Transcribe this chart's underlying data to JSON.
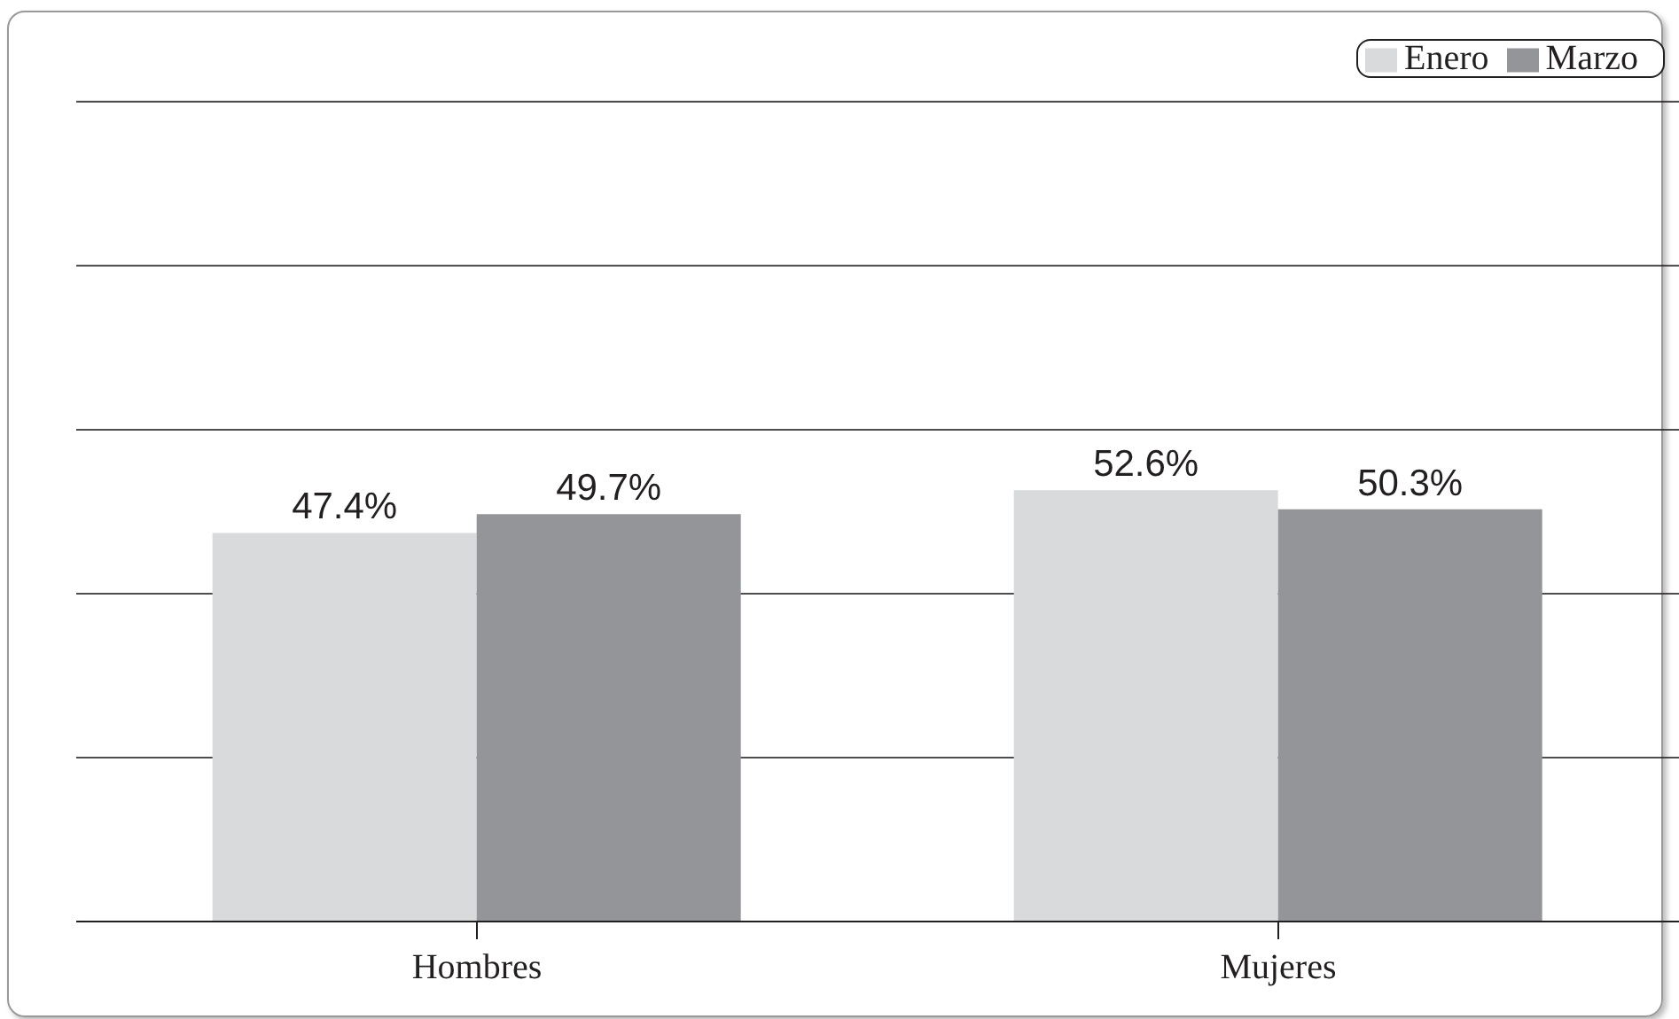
{
  "chart_data": {
    "type": "bar",
    "categories": [
      "Hombres",
      "Mujeres"
    ],
    "series": [
      {
        "name": "Enero",
        "color": "#d9dadb",
        "values": [
          47.4,
          52.6
        ],
        "value_labels": [
          "47.4%",
          "52.6%"
        ]
      },
      {
        "name": "Marzo",
        "color": "#939598",
        "values": [
          49.7,
          50.3
        ],
        "value_labels": [
          "49.7%",
          "50.3%"
        ]
      }
    ],
    "ylim": [
      0,
      100
    ],
    "yticks": [
      {
        "value": 0,
        "label": null
      },
      {
        "value": 20,
        "label": null
      },
      {
        "value": 40,
        "label": null
      },
      {
        "value": 60,
        "label": null
      },
      {
        "value": 80,
        "label": null
      },
      {
        "value": 100,
        "label": null
      }
    ],
    "tick_labels": "x",
    "grid": "y",
    "legend": "top right"
  }
}
